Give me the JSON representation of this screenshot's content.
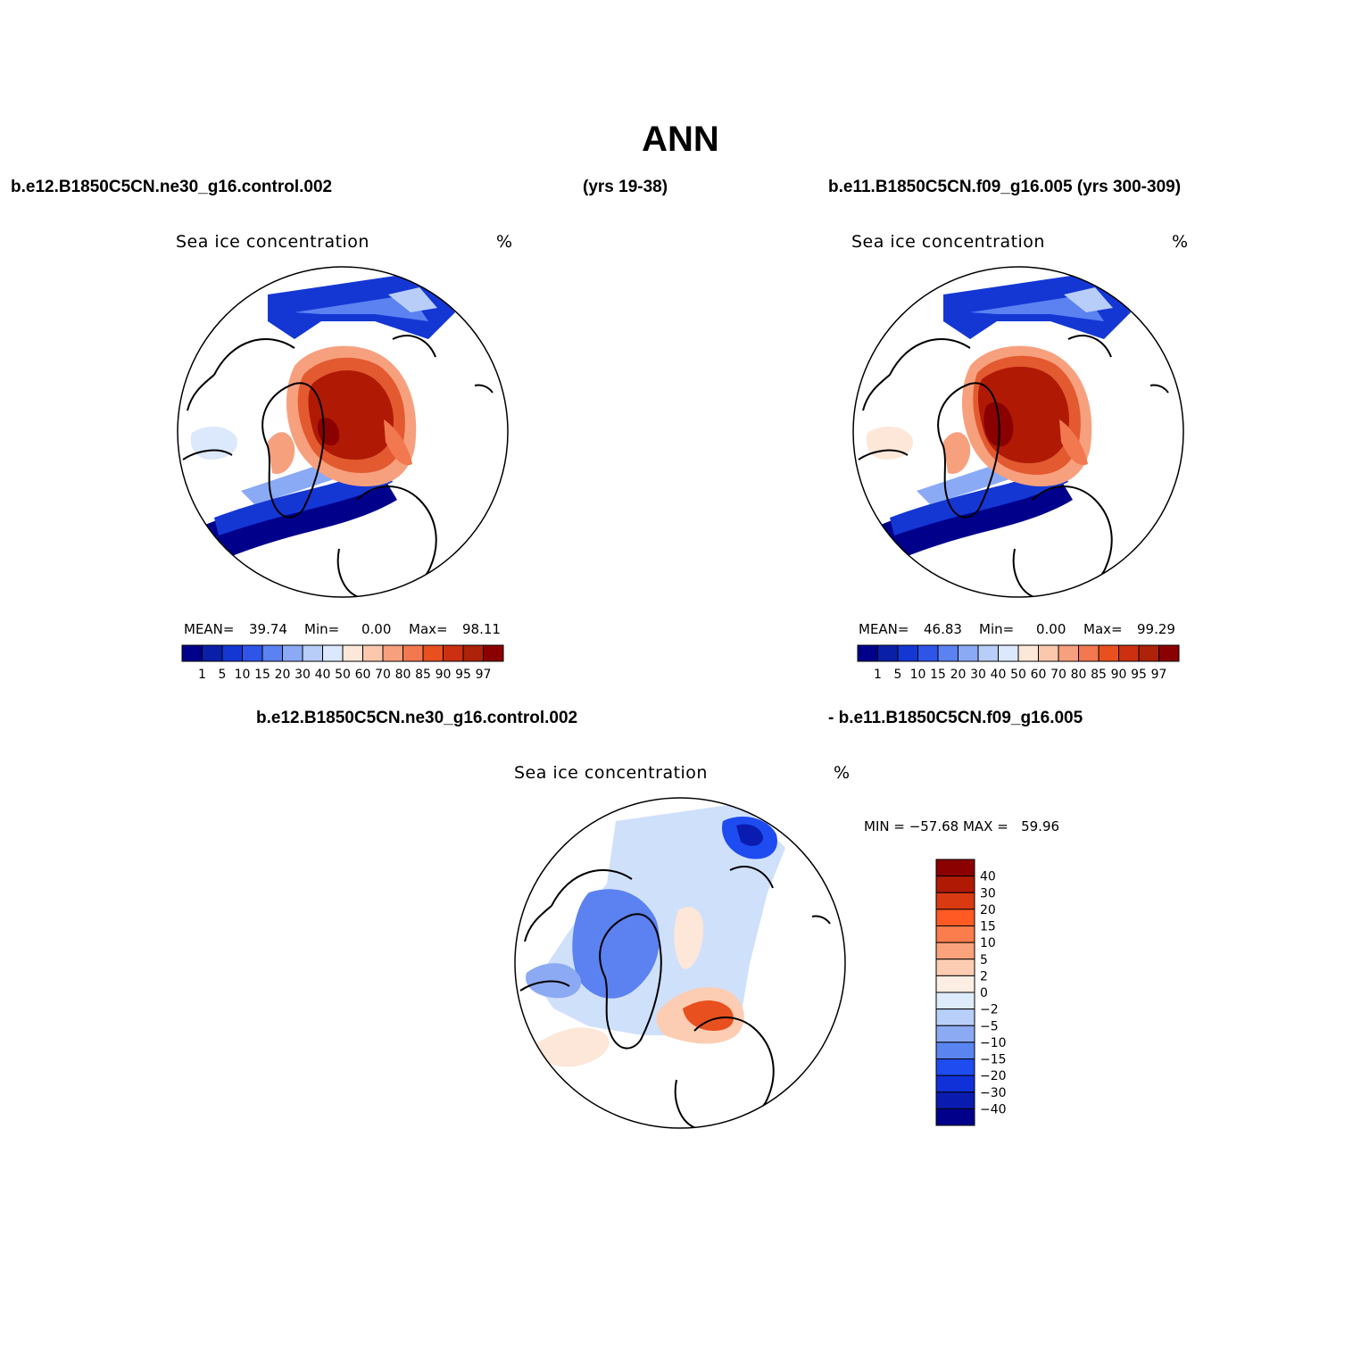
{
  "title": "ANN",
  "panel_left": {
    "case": "b.e12.B1850C5CN.ne30_g16.control.002",
    "years": "(yrs 19-38)",
    "variable": "Sea ice concentration",
    "units": "%",
    "mean_label": "MEAN=",
    "mean": "39.74",
    "min_label": "Min=",
    "min": "0.00",
    "max_label": "Max=",
    "max": "98.11"
  },
  "panel_right": {
    "case": "b.e11.B1850C5CN.f09_g16.005 (yrs 300-309)",
    "variable": "Sea ice concentration",
    "units": "%",
    "mean_label": "MEAN=",
    "mean": "46.83",
    "min_label": "Min=",
    "min": "0.00",
    "max_label": "Max=",
    "max": "99.29"
  },
  "panel_diff": {
    "case_a": "b.e12.B1850C5CN.ne30_g16.control.002",
    "case_b": "- b.e11.B1850C5CN.f09_g16.005",
    "variable": "Sea ice concentration",
    "units": "%",
    "minmax": "MIN = −57.68 MAX =   59.96"
  },
  "colorbar_horizontal": {
    "labels": [
      "1",
      "5",
      "10",
      "15",
      "20",
      "30",
      "40",
      "50",
      "60",
      "70",
      "80",
      "85",
      "90",
      "95",
      "97"
    ],
    "colors": [
      "#00008b",
      "#0a1fa8",
      "#1437d4",
      "#2e55e8",
      "#5b82f0",
      "#8aaaf5",
      "#b8cdf8",
      "#dce8fb",
      "#fde7d9",
      "#fbc8ae",
      "#f7a07e",
      "#f27850",
      "#e8501f",
      "#cc3010",
      "#ad2208",
      "#8b0000"
    ]
  },
  "colorbar_vertical": {
    "labels": [
      "40",
      "30",
      "20",
      "15",
      "10",
      "5",
      "2",
      "0",
      "−2",
      "−5",
      "−10",
      "−15",
      "−20",
      "−30",
      "−40"
    ],
    "colors": [
      "#8b0000",
      "#b01a05",
      "#d93a12",
      "#ff5a24",
      "#fb7c4c",
      "#f9a27c",
      "#fccdb2",
      "#fdeee4",
      "#ddebfb",
      "#b8cffa",
      "#8caaf3",
      "#5a84f0",
      "#1e4cf0",
      "#1030d8",
      "#0a1cb0",
      "#00008b"
    ]
  },
  "map_colors": {
    "ice_core": "#b01a05",
    "ice_mid": "#e35a30",
    "ice_edge": "#f7a07e",
    "ice_pale": "#fde2d0",
    "low_blue": "#1e4cf0",
    "mid_blue": "#5b82f0",
    "pale_blue": "#cfe0fb",
    "deep_blue": "#00008b",
    "diff_red": "#e8501f",
    "diff_peach": "#fccdb2",
    "land": "#ffffff"
  }
}
